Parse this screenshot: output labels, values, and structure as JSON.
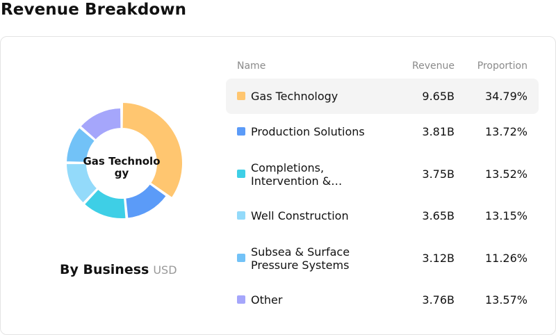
{
  "page": {
    "title": "Revenue Breakdown"
  },
  "panel": {
    "subtitle": "By Business",
    "unit": "USD",
    "center_label": "Gas Technology"
  },
  "table": {
    "headers": {
      "name": "Name",
      "revenue": "Revenue",
      "proportion": "Proportion"
    }
  },
  "chart_data": {
    "type": "pie",
    "variant": "donut",
    "title": "By Business",
    "unit": "USD",
    "categories": [
      "Gas Technology",
      "Production Solutions",
      "Completions, Intervention &…",
      "Well Construction",
      "Subsea & Surface Pressure Systems",
      "Other"
    ],
    "revenue_labels": [
      "9.65B",
      "3.81B",
      "3.75B",
      "3.65B",
      "3.12B",
      "3.76B"
    ],
    "proportion_labels": [
      "34.79%",
      "13.72%",
      "13.52%",
      "13.15%",
      "11.26%",
      "13.57%"
    ],
    "values": [
      34.79,
      13.72,
      13.52,
      13.15,
      11.26,
      13.57
    ],
    "colors": [
      "#FFC670",
      "#5B9BF8",
      "#3ECFE6",
      "#93DAFA",
      "#72C2F7",
      "#A5A6FB"
    ],
    "highlighted_index": 0
  }
}
